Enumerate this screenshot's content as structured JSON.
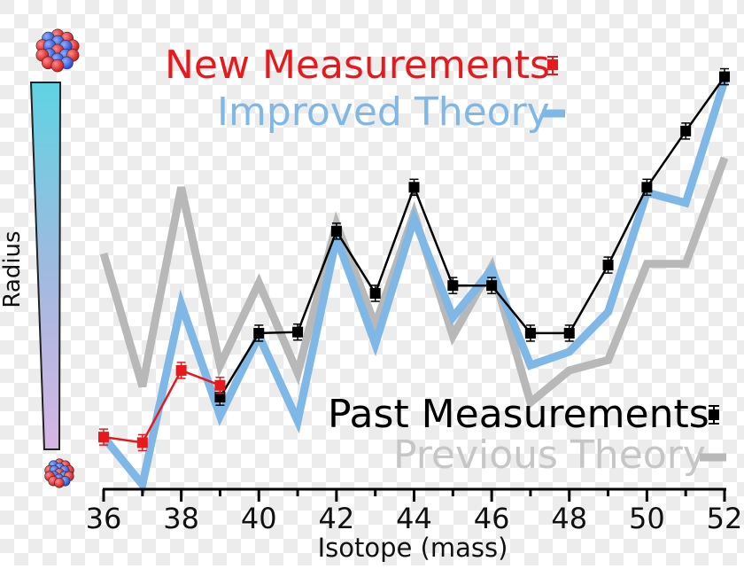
{
  "chart_data": {
    "type": "line",
    "xlabel": "Isotope (mass)",
    "ylabel": "Radius",
    "xlim": [
      36,
      52
    ],
    "ylim": [
      0,
      100
    ],
    "x_ticks": [
      36,
      37,
      38,
      39,
      40,
      41,
      42,
      43,
      44,
      45,
      46,
      47,
      48,
      49,
      50,
      51,
      52
    ],
    "x_tick_labels": [
      "36",
      "38",
      "40",
      "42",
      "44",
      "46",
      "48",
      "50",
      "52"
    ],
    "legend": [
      {
        "label": "New Measurements",
        "color": "#e8191c",
        "kind": "errorbar-square",
        "position": "top"
      },
      {
        "label": "Improved Theory",
        "color": "#7fb8e6",
        "kind": "thick-line",
        "position": "top"
      },
      {
        "label": "Past Measurements",
        "color": "#000000",
        "kind": "errorbar-square",
        "position": "bottom-right"
      },
      {
        "label": "Previous Theory",
        "color": "#b8b8b8",
        "kind": "thick-line",
        "position": "bottom-right"
      }
    ],
    "series": [
      {
        "name": "Previous Theory",
        "color": "#b8b8b8",
        "style": "thick-line",
        "x": [
          36,
          37,
          38,
          39,
          40,
          41,
          42,
          43,
          44,
          45,
          46,
          47,
          48,
          49,
          50,
          51,
          52
        ],
        "y": [
          60.7,
          25.0,
          78.5,
          30.7,
          52.8,
          28.6,
          68.6,
          41.4,
          71.4,
          38.6,
          57.1,
          20.7,
          29.3,
          32.1,
          57.9,
          57.9,
          86.4
        ]
      },
      {
        "name": "Improved Theory",
        "color": "#7fb8e6",
        "style": "thick-line",
        "x": [
          36,
          37,
          38,
          39,
          40,
          41,
          42,
          43,
          44,
          45,
          46,
          47,
          48,
          49,
          50,
          51,
          52
        ],
        "y": [
          11.4,
          -1.4,
          47.1,
          17.1,
          38.6,
          15.7,
          65.0,
          36.4,
          70.0,
          43.6,
          56.4,
          30.7,
          34.3,
          45.0,
          77.1,
          74.3,
          107.1
        ]
      },
      {
        "name": "Past Measurements",
        "color": "#000000",
        "style": "line-errorbar-square",
        "x": [
          39,
          40,
          41,
          42,
          43,
          44,
          45,
          46,
          47,
          48,
          49,
          50,
          51,
          52
        ],
        "y": [
          22.1,
          39.3,
          39.6,
          66.7,
          50.0,
          78.5,
          52.1,
          52.1,
          39.3,
          39.3,
          57.6,
          78.5,
          93.6,
          108.2
        ]
      },
      {
        "name": "New Measurements",
        "color": "#e8191c",
        "style": "line-errorbar-square",
        "x": [
          36,
          37,
          38,
          39
        ],
        "y": [
          11.4,
          9.9,
          29.3,
          25.3
        ]
      }
    ],
    "grid": false
  }
}
